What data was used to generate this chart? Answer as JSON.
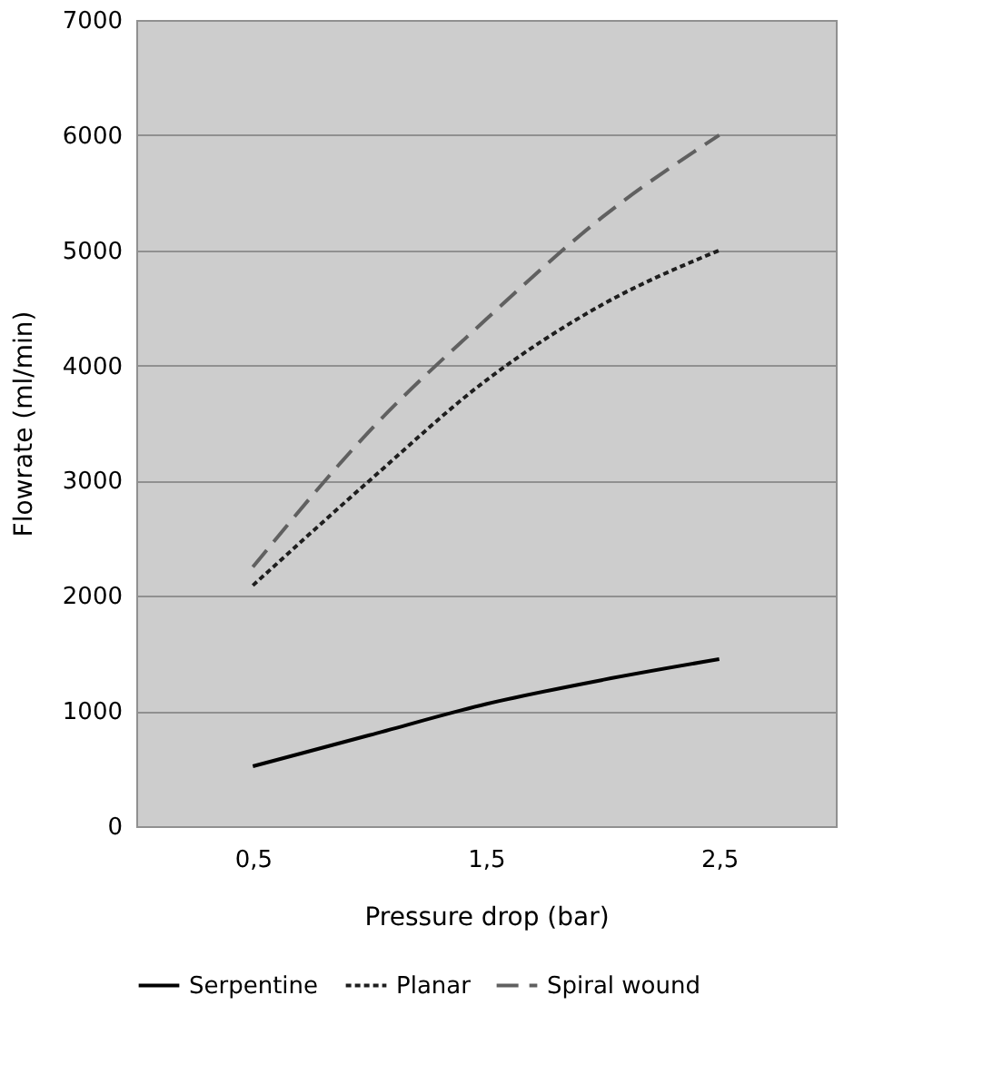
{
  "chart_data": {
    "type": "line",
    "xlabel": "Pressure drop (bar)",
    "ylabel": "Flowrate (ml/min)",
    "x": [
      0.5,
      1.0,
      1.5,
      2.0,
      2.5
    ],
    "xlim": [
      0,
      3
    ],
    "xticks": [
      {
        "value": 0.5,
        "label": "0,5"
      },
      {
        "value": 1.5,
        "label": "1,5"
      },
      {
        "value": 2.5,
        "label": "2,5"
      }
    ],
    "ylim": [
      0,
      7000
    ],
    "yticks": [
      0,
      1000,
      2000,
      3000,
      4000,
      5000,
      6000,
      7000
    ],
    "grid": "y",
    "legend": "bottom",
    "marker": "none",
    "series": [
      {
        "name": "Serpentine",
        "color": "#000000",
        "line_style": "solid",
        "values": [
          520,
          790,
          1060,
          1270,
          1450
        ]
      },
      {
        "name": "Planar",
        "color": "#1e1e1e",
        "line_style": "dotted",
        "values": [
          2090,
          3000,
          3870,
          4530,
          5000
        ]
      },
      {
        "name": "Spiral wound",
        "color": "#606060",
        "line_style": "dashed",
        "values": [
          2250,
          3430,
          4400,
          5290,
          6000
        ]
      }
    ]
  }
}
